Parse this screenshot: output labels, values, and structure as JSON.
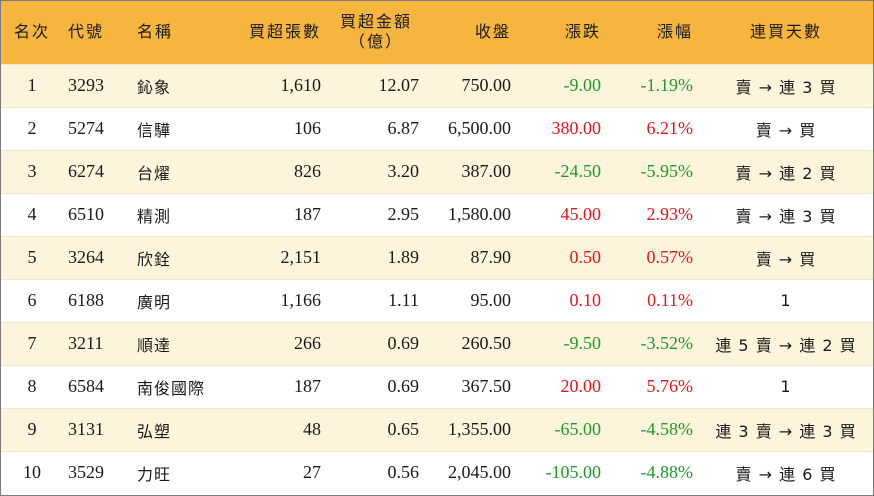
{
  "headers": {
    "rank": "名次",
    "code": "代號",
    "name": "名稱",
    "shares": "買超張數",
    "amount_line1": "買超金額",
    "amount_line2": "（億）",
    "close": "收盤",
    "change": "漲跌",
    "pct": "漲幅",
    "days": "連買天數"
  },
  "colors": {
    "header_bg": "#f5b53f",
    "row_alt_bg": "#fdf4dc",
    "up": "#e8141c",
    "down": "#1f9a2a"
  },
  "rows": [
    {
      "rank": "1",
      "code": "3293",
      "name": "鈊象",
      "shares": "1,610",
      "amount": "12.07",
      "close": "750.00",
      "change": "-9.00",
      "pct": "-1.19%",
      "dir": "down",
      "days": "賣 → 連 3 買"
    },
    {
      "rank": "2",
      "code": "5274",
      "name": "信驊",
      "shares": "106",
      "amount": "6.87",
      "close": "6,500.00",
      "change": "380.00",
      "pct": "6.21%",
      "dir": "up",
      "days": "賣 → 買"
    },
    {
      "rank": "3",
      "code": "6274",
      "name": "台燿",
      "shares": "826",
      "amount": "3.20",
      "close": "387.00",
      "change": "-24.50",
      "pct": "-5.95%",
      "dir": "down",
      "days": "賣 → 連 2 買"
    },
    {
      "rank": "4",
      "code": "6510",
      "name": "精測",
      "shares": "187",
      "amount": "2.95",
      "close": "1,580.00",
      "change": "45.00",
      "pct": "2.93%",
      "dir": "up",
      "days": "賣 → 連 3 買"
    },
    {
      "rank": "5",
      "code": "3264",
      "name": "欣銓",
      "shares": "2,151",
      "amount": "1.89",
      "close": "87.90",
      "change": "0.50",
      "pct": "0.57%",
      "dir": "up",
      "days": "賣 → 買"
    },
    {
      "rank": "6",
      "code": "6188",
      "name": "廣明",
      "shares": "1,166",
      "amount": "1.11",
      "close": "95.00",
      "change": "0.10",
      "pct": "0.11%",
      "dir": "up",
      "days": "1"
    },
    {
      "rank": "7",
      "code": "3211",
      "name": "順達",
      "shares": "266",
      "amount": "0.69",
      "close": "260.50",
      "change": "-9.50",
      "pct": "-3.52%",
      "dir": "down",
      "days": "連 5 賣 → 連 2 買"
    },
    {
      "rank": "8",
      "code": "6584",
      "name": "南俊國際",
      "shares": "187",
      "amount": "0.69",
      "close": "367.50",
      "change": "20.00",
      "pct": "5.76%",
      "dir": "up",
      "days": "1"
    },
    {
      "rank": "9",
      "code": "3131",
      "name": "弘塑",
      "shares": "48",
      "amount": "0.65",
      "close": "1,355.00",
      "change": "-65.00",
      "pct": "-4.58%",
      "dir": "down",
      "days": "連 3 賣 → 連 3 買"
    },
    {
      "rank": "10",
      "code": "3529",
      "name": "力旺",
      "shares": "27",
      "amount": "0.56",
      "close": "2,045.00",
      "change": "-105.00",
      "pct": "-4.88%",
      "dir": "down",
      "days": "賣 → 連 6 買"
    }
  ]
}
